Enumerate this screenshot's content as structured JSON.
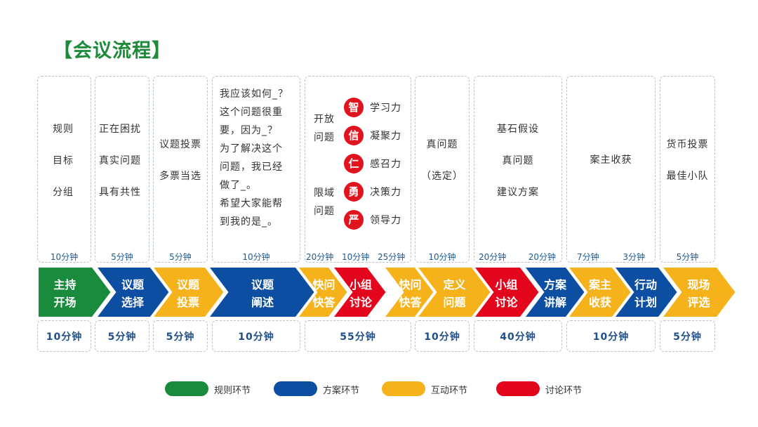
{
  "title": "【会议流程】",
  "colors": {
    "rules": "#1a8a3c",
    "plan": "#0b4ea2",
    "interact": "#f6b21a",
    "discuss": "#e3051b",
    "title": "#1d8b3a"
  },
  "top_boxes": [
    {
      "lines": [
        "规则",
        "目标",
        "分组"
      ],
      "durations": [
        "10分钟"
      ]
    },
    {
      "lines": [
        "正在困扰",
        "真实问题",
        "具有共性"
      ],
      "durations": [
        "5分钟"
      ]
    },
    {
      "lines": [
        "议题投票",
        "多票当选"
      ],
      "durations": [
        "5分钟"
      ]
    },
    {
      "lines": [
        "我应该如何_？",
        "这个问题很重",
        "要，因为_？",
        "为了解决这个",
        "问题，我已经",
        "做了_。",
        "希望大家能帮",
        "到我的是_。"
      ],
      "durations": [
        "10分钟"
      ]
    },
    {
      "open_label": [
        "开放",
        "问题"
      ],
      "limited_label": [
        "限域",
        "问题"
      ],
      "virtues": [
        {
          "char": "智",
          "ability": "学习力"
        },
        {
          "char": "信",
          "ability": "凝聚力"
        },
        {
          "char": "仁",
          "ability": "感召力"
        },
        {
          "char": "勇",
          "ability": "决策力"
        },
        {
          "char": "严",
          "ability": "领导力"
        }
      ],
      "durations": [
        "20分钟",
        "10分钟",
        "25分钟"
      ]
    },
    {
      "lines": [
        "真问题",
        "（选定）"
      ],
      "durations": [
        "10分钟"
      ]
    },
    {
      "lines": [
        "基石假设",
        "真问题",
        "建议方案"
      ],
      "durations": [
        "20分钟",
        "20分钟"
      ]
    },
    {
      "lines": [
        "案主收获"
      ],
      "durations": [
        "7分钟",
        "3分钟"
      ]
    },
    {
      "lines": [
        "货币投票",
        "最佳小队"
      ],
      "durations": [
        "5分钟"
      ]
    }
  ],
  "steps": [
    {
      "lines": [
        "主持",
        "开场"
      ],
      "type": "rules"
    },
    {
      "lines": [
        "议题",
        "选择"
      ],
      "type": "plan"
    },
    {
      "lines": [
        "议题",
        "投票"
      ],
      "type": "interact"
    },
    {
      "lines": [
        "议题",
        "阐述"
      ],
      "type": "plan"
    },
    {
      "lines": [
        "快问",
        "快答"
      ],
      "type": "interact"
    },
    {
      "lines": [
        "小组",
        "讨论"
      ],
      "type": "discuss"
    },
    {
      "lines": [
        "快问",
        "快答"
      ],
      "type": "interact"
    },
    {
      "lines": [
        "定义",
        "问题"
      ],
      "type": "interact"
    },
    {
      "lines": [
        "小组",
        "讨论"
      ],
      "type": "discuss"
    },
    {
      "lines": [
        "方案",
        "讲解"
      ],
      "type": "plan"
    },
    {
      "lines": [
        "案主",
        "收获"
      ],
      "type": "interact"
    },
    {
      "lines": [
        "行动",
        "计划"
      ],
      "type": "plan"
    },
    {
      "lines": [
        "现场",
        "评选"
      ],
      "type": "interact"
    }
  ],
  "bottom_durations": [
    "10分钟",
    "5分钟",
    "5分钟",
    "10分钟",
    "55分钟",
    "10分钟",
    "40分钟",
    "10分钟",
    "5分钟"
  ],
  "legend": [
    {
      "label": "规则环节",
      "type": "rules"
    },
    {
      "label": "方案环节",
      "type": "plan"
    },
    {
      "label": "互动环节",
      "type": "interact"
    },
    {
      "label": "讨论环节",
      "type": "discuss"
    }
  ]
}
